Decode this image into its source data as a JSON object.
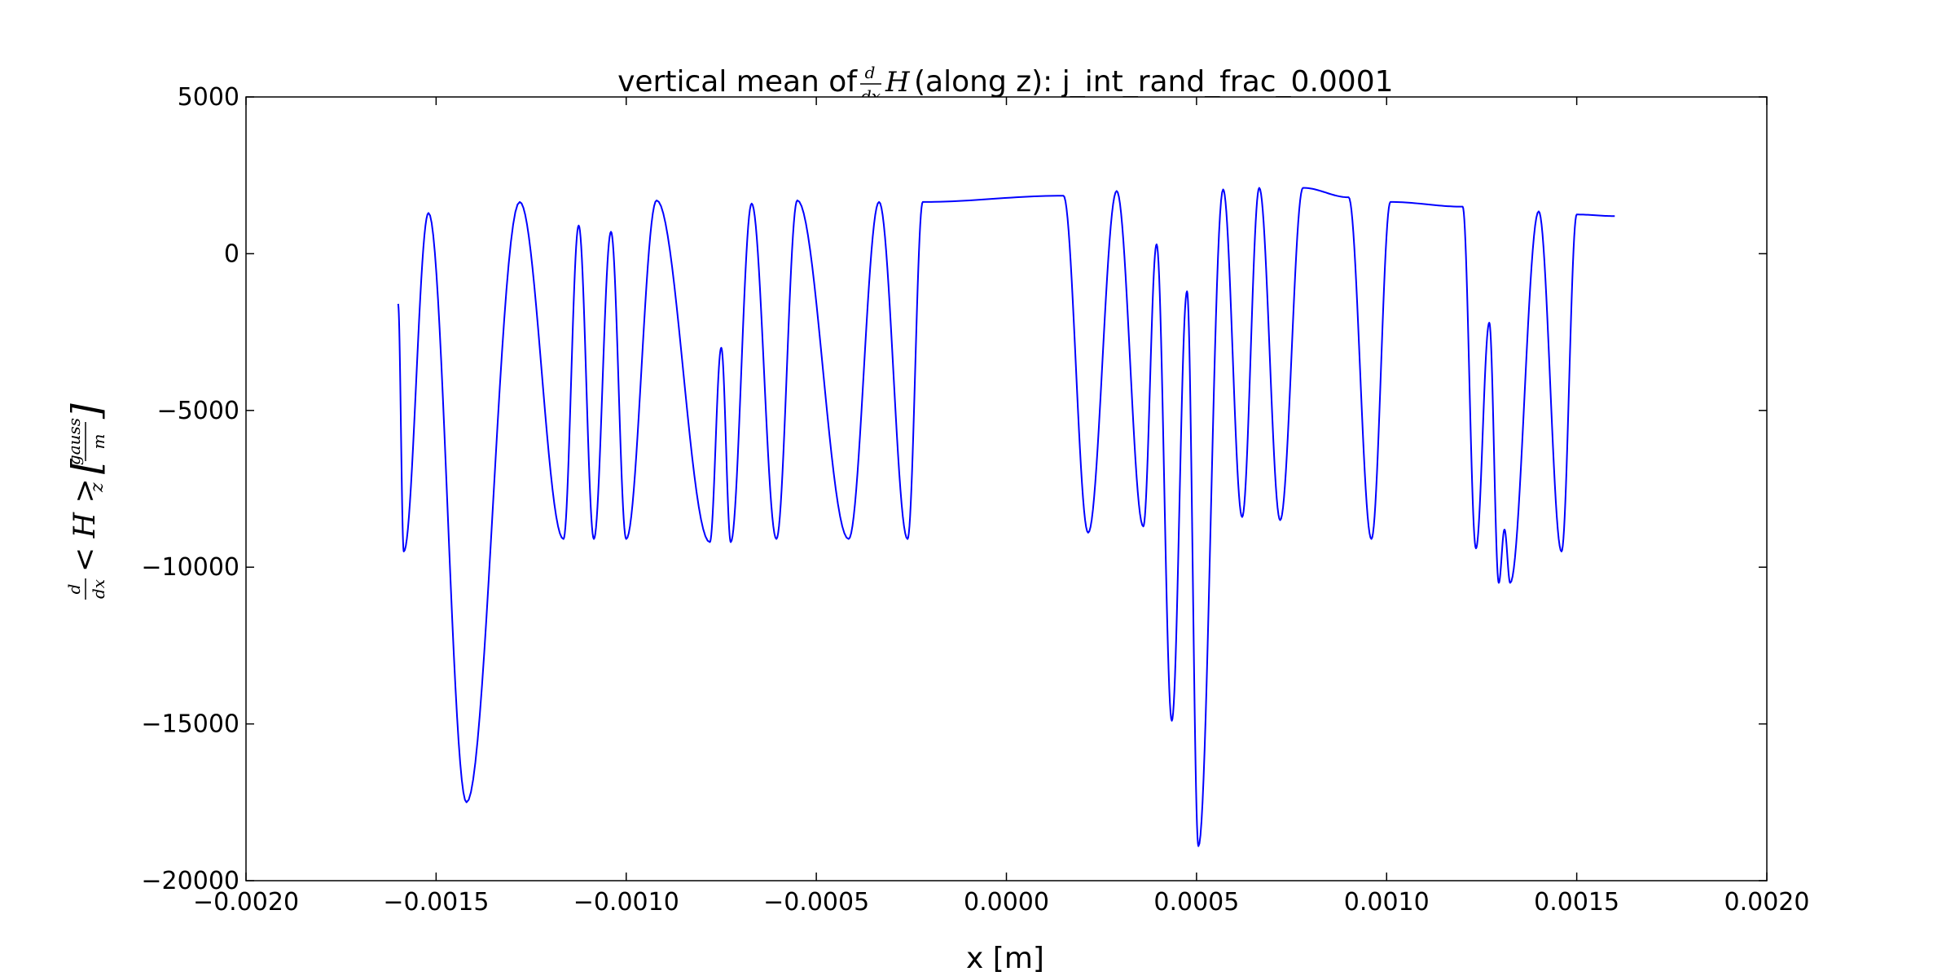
{
  "chart_data": {
    "type": "line",
    "title_prefix": "vertical mean of",
    "title_math_num": "d",
    "title_math_den": "dx",
    "title_math_var": "H",
    "title_suffix": "(along z): j_int_rand_frac_0.0001",
    "xlabel": "x [m]",
    "ylabel_num": "d",
    "ylabel_den": "dx",
    "ylabel_expr": "< H >",
    "ylabel_sub": "z",
    "ylabel_unit_num": "gauss",
    "ylabel_unit_den": "m",
    "xlim": [
      -0.002,
      0.002
    ],
    "ylim": [
      -20000,
      5000
    ],
    "x_ticks": [
      -0.002,
      -0.0015,
      -0.001,
      -0.0005,
      0.0,
      0.0005,
      0.001,
      0.0015,
      0.002
    ],
    "x_tick_labels": [
      "−0.0020",
      "−0.0015",
      "−0.0010",
      "−0.0005",
      "0.0000",
      "0.0005",
      "0.0010",
      "0.0015",
      "0.0020"
    ],
    "y_ticks": [
      5000,
      0,
      -5000,
      -10000,
      -15000,
      -20000
    ],
    "y_tick_labels": [
      "5000",
      "0",
      "−5000",
      "−10000",
      "−15000",
      "−20000"
    ],
    "grid": false,
    "series": [
      {
        "color": "#0000ff",
        "x_start": -0.0016,
        "x_end": 0.0016,
        "points": [
          [
            -0.0016,
            -1600
          ],
          [
            -0.001585,
            -9500
          ],
          [
            -0.00152,
            1300
          ],
          [
            -0.00142,
            -17500
          ],
          [
            -0.00128,
            1650
          ],
          [
            -0.001165,
            -9100
          ],
          [
            -0.001125,
            900
          ],
          [
            -0.001085,
            -9100
          ],
          [
            -0.00104,
            700
          ],
          [
            -0.001,
            -9100
          ],
          [
            -0.00092,
            1700
          ],
          [
            -0.00078,
            -9200
          ],
          [
            -0.00075,
            -3000
          ],
          [
            -0.000725,
            -9200
          ],
          [
            -0.00067,
            1600
          ],
          [
            -0.000605,
            -9100
          ],
          [
            -0.00055,
            1700
          ],
          [
            -0.000415,
            -9100
          ],
          [
            -0.000335,
            1650
          ],
          [
            -0.00026,
            -9100
          ],
          [
            -0.00022,
            1650
          ],
          [
            0.00015,
            1850
          ],
          [
            0.000215,
            -8900
          ],
          [
            0.00029,
            2000
          ],
          [
            0.00036,
            -8700
          ],
          [
            0.000395,
            300
          ],
          [
            0.000435,
            -14900
          ],
          [
            0.000475,
            -1200
          ],
          [
            0.000505,
            -18900
          ],
          [
            0.00057,
            2050
          ],
          [
            0.00062,
            -8400
          ],
          [
            0.000665,
            2100
          ],
          [
            0.00072,
            -8500
          ],
          [
            0.00078,
            2100
          ],
          [
            0.0009,
            1800
          ],
          [
            0.00096,
            -9100
          ],
          [
            0.00101,
            1650
          ],
          [
            0.0012,
            1500
          ],
          [
            0.001235,
            -9400
          ],
          [
            0.00127,
            -2200
          ],
          [
            0.001295,
            -10500
          ],
          [
            0.00131,
            -8800
          ],
          [
            0.001325,
            -10500
          ],
          [
            0.0014,
            1350
          ],
          [
            0.00146,
            -9500
          ],
          [
            0.0015,
            1250
          ],
          [
            0.0016,
            1200
          ]
        ]
      }
    ]
  }
}
